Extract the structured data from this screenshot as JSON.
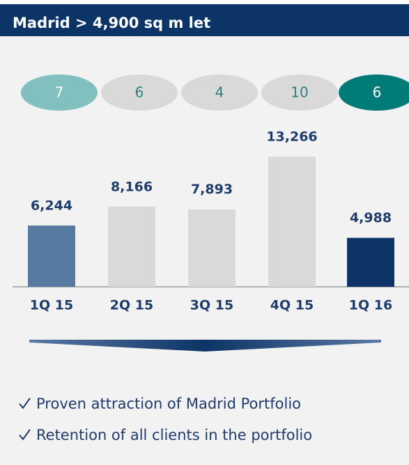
{
  "chart_data": {
    "type": "bar",
    "title": "Madrid > 4,900 sq m let",
    "counts": [
      7,
      6,
      4,
      10,
      6
    ],
    "count_colors": [
      "#82c0c0",
      "#d9d9d9",
      "#d9d9d9",
      "#d9d9d9",
      "#007b78"
    ],
    "count_text_colors": [
      "#ffffff",
      "#2f7f80",
      "#2f7f80",
      "#2f7f80",
      "#ffffff"
    ],
    "categories": [
      "1Q 15",
      "2Q 15",
      "3Q 15",
      "4Q 15",
      "1Q 16"
    ],
    "values": [
      6244,
      8166,
      7893,
      13266,
      4988
    ],
    "value_labels": [
      "6,244",
      "8,166",
      "7,893",
      "13,266",
      "4,988"
    ],
    "colors": [
      "#577ba0",
      "#d9d9d9",
      "#d9d9d9",
      "#d9d9d9",
      "#0d3466"
    ]
  },
  "bullets": [
    "Proven attraction of Madrid Portfolio",
    "Retention of all clients in the portfolio"
  ]
}
